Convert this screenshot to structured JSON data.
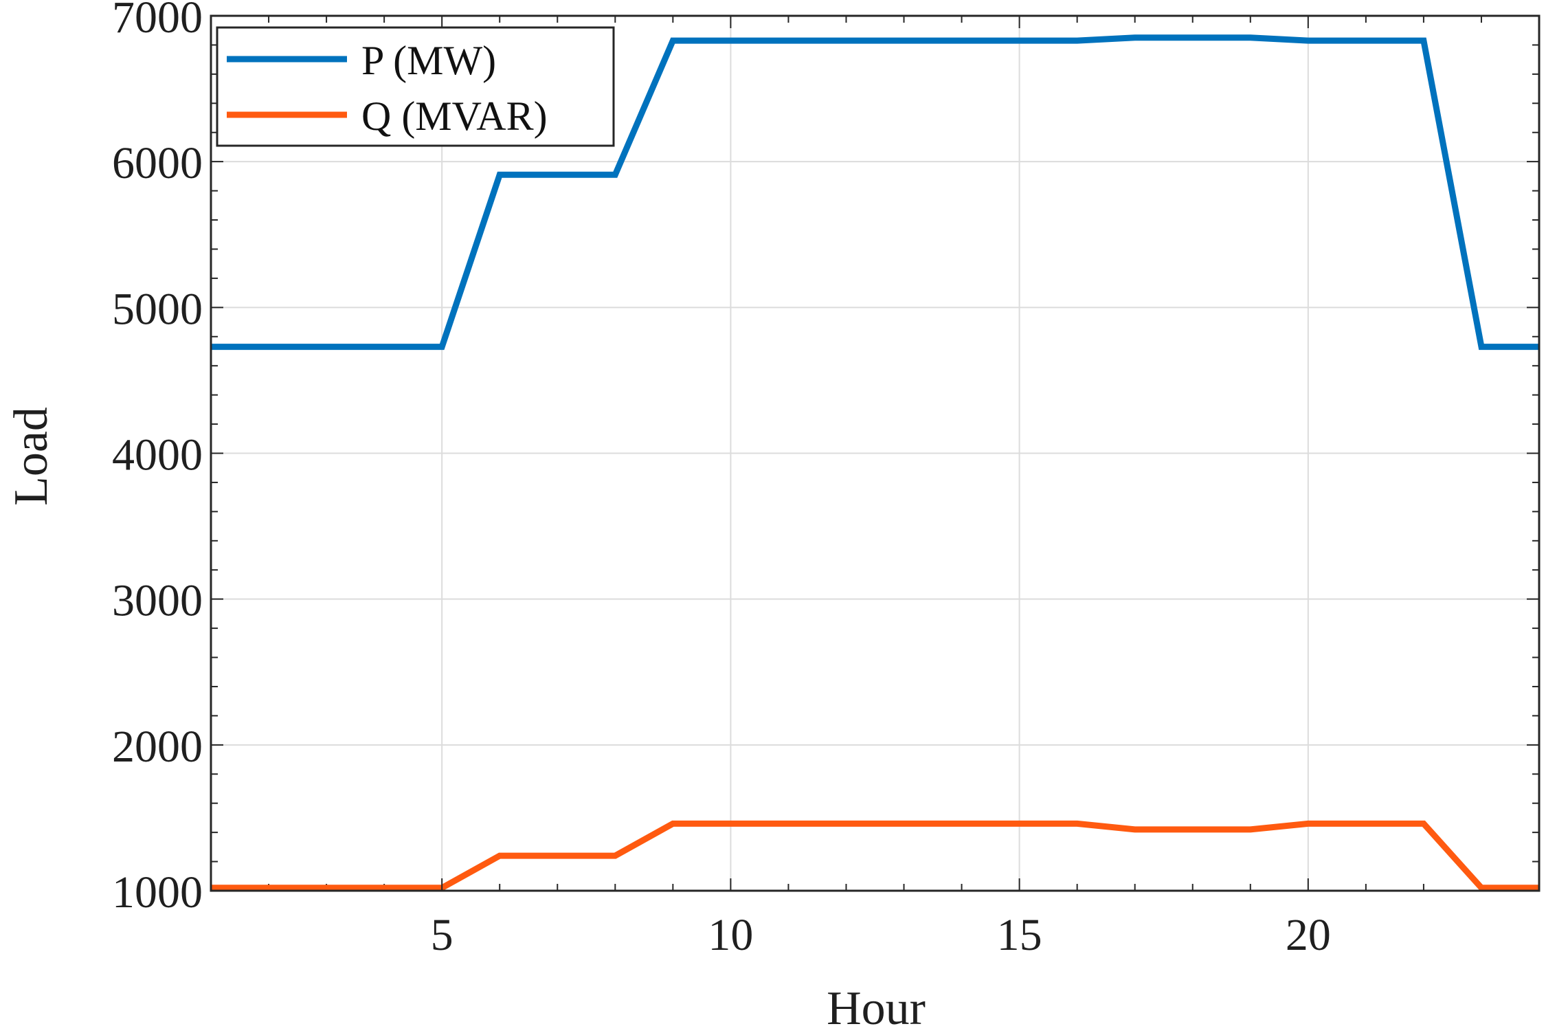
{
  "chart_data": {
    "type": "line",
    "xlabel": "Hour",
    "ylabel": "Load",
    "xlim": [
      1,
      24
    ],
    "ylim": [
      1000,
      7000
    ],
    "xticks": [
      5,
      10,
      15,
      20
    ],
    "yticks": [
      1000,
      2000,
      3000,
      4000,
      5000,
      6000,
      7000
    ],
    "grid": true,
    "legend_position": "top-left",
    "x": [
      1,
      2,
      3,
      4,
      5,
      6,
      7,
      8,
      9,
      10,
      11,
      12,
      13,
      14,
      15,
      16,
      17,
      18,
      19,
      20,
      21,
      22,
      23,
      24
    ],
    "series": [
      {
        "name": "P (MW)",
        "color": "#0072BD",
        "values": [
          4730,
          4730,
          4730,
          4730,
          4730,
          5910,
          5910,
          5910,
          6830,
          6830,
          6830,
          6830,
          6830,
          6830,
          6830,
          6830,
          6850,
          6850,
          6850,
          6830,
          6830,
          6830,
          4730,
          4730
        ]
      },
      {
        "name": "Q (MVAR)",
        "color": "#FF5A10",
        "values": [
          1020,
          1020,
          1020,
          1020,
          1020,
          1240,
          1240,
          1240,
          1460,
          1460,
          1460,
          1460,
          1460,
          1460,
          1460,
          1460,
          1420,
          1420,
          1420,
          1460,
          1460,
          1460,
          1020,
          1020
        ]
      }
    ]
  }
}
